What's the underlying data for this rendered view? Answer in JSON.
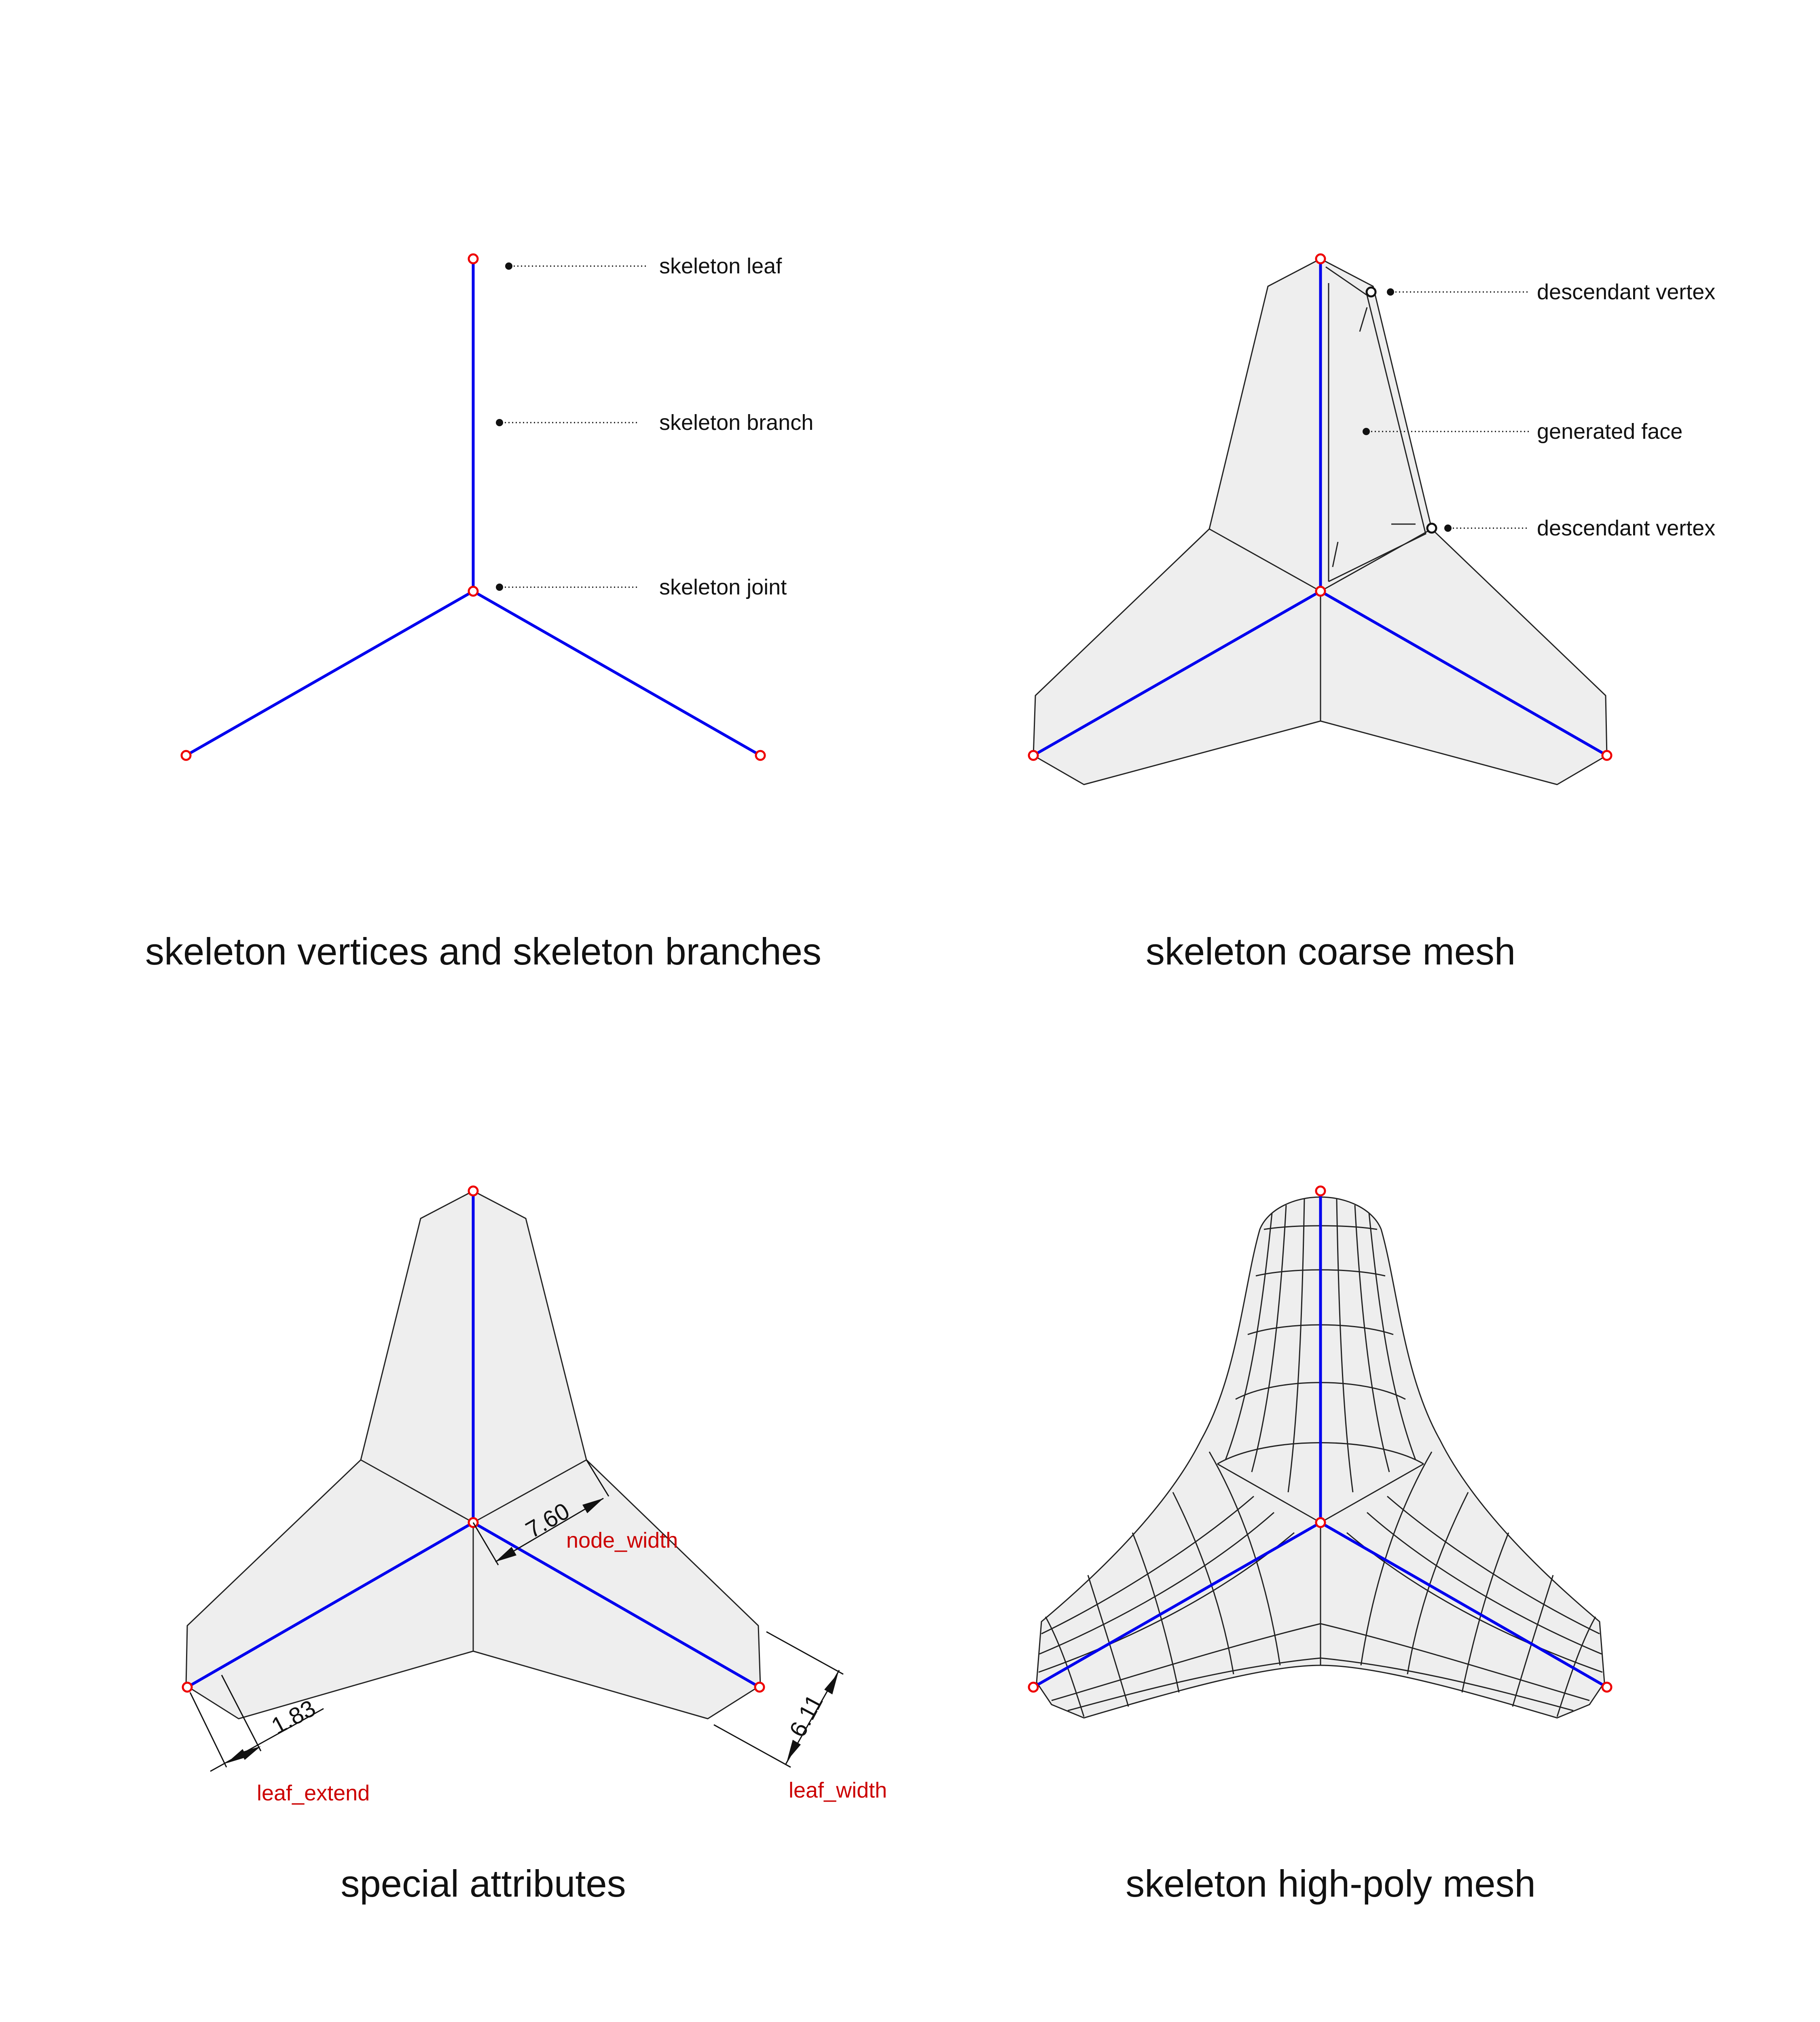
{
  "panels": {
    "p1": {
      "title": "skeleton vertices and skeleton branches",
      "callouts": {
        "leaf": "skeleton leaf",
        "branch": "skeleton branch",
        "joint": "skeleton joint"
      }
    },
    "p2": {
      "title": "skeleton coarse mesh",
      "callouts": {
        "descendant_top": "descendant vertex",
        "face": "generated face",
        "descendant_bottom": "descendant vertex"
      }
    },
    "p3": {
      "title": "special attributes",
      "dimensions": {
        "node_width_value": "7.60",
        "node_width_label": "node_width",
        "leaf_extend_value": "1.83",
        "leaf_extend_label": "leaf_extend",
        "leaf_width_value": "6.11",
        "leaf_width_label": "leaf_width"
      }
    },
    "p4": {
      "title": "skeleton high-poly mesh"
    }
  },
  "colors": {
    "branch": "#0000ee",
    "vertex": "#ee0000",
    "face_fill": "#eeeeee",
    "attr_text": "#cc0000"
  }
}
